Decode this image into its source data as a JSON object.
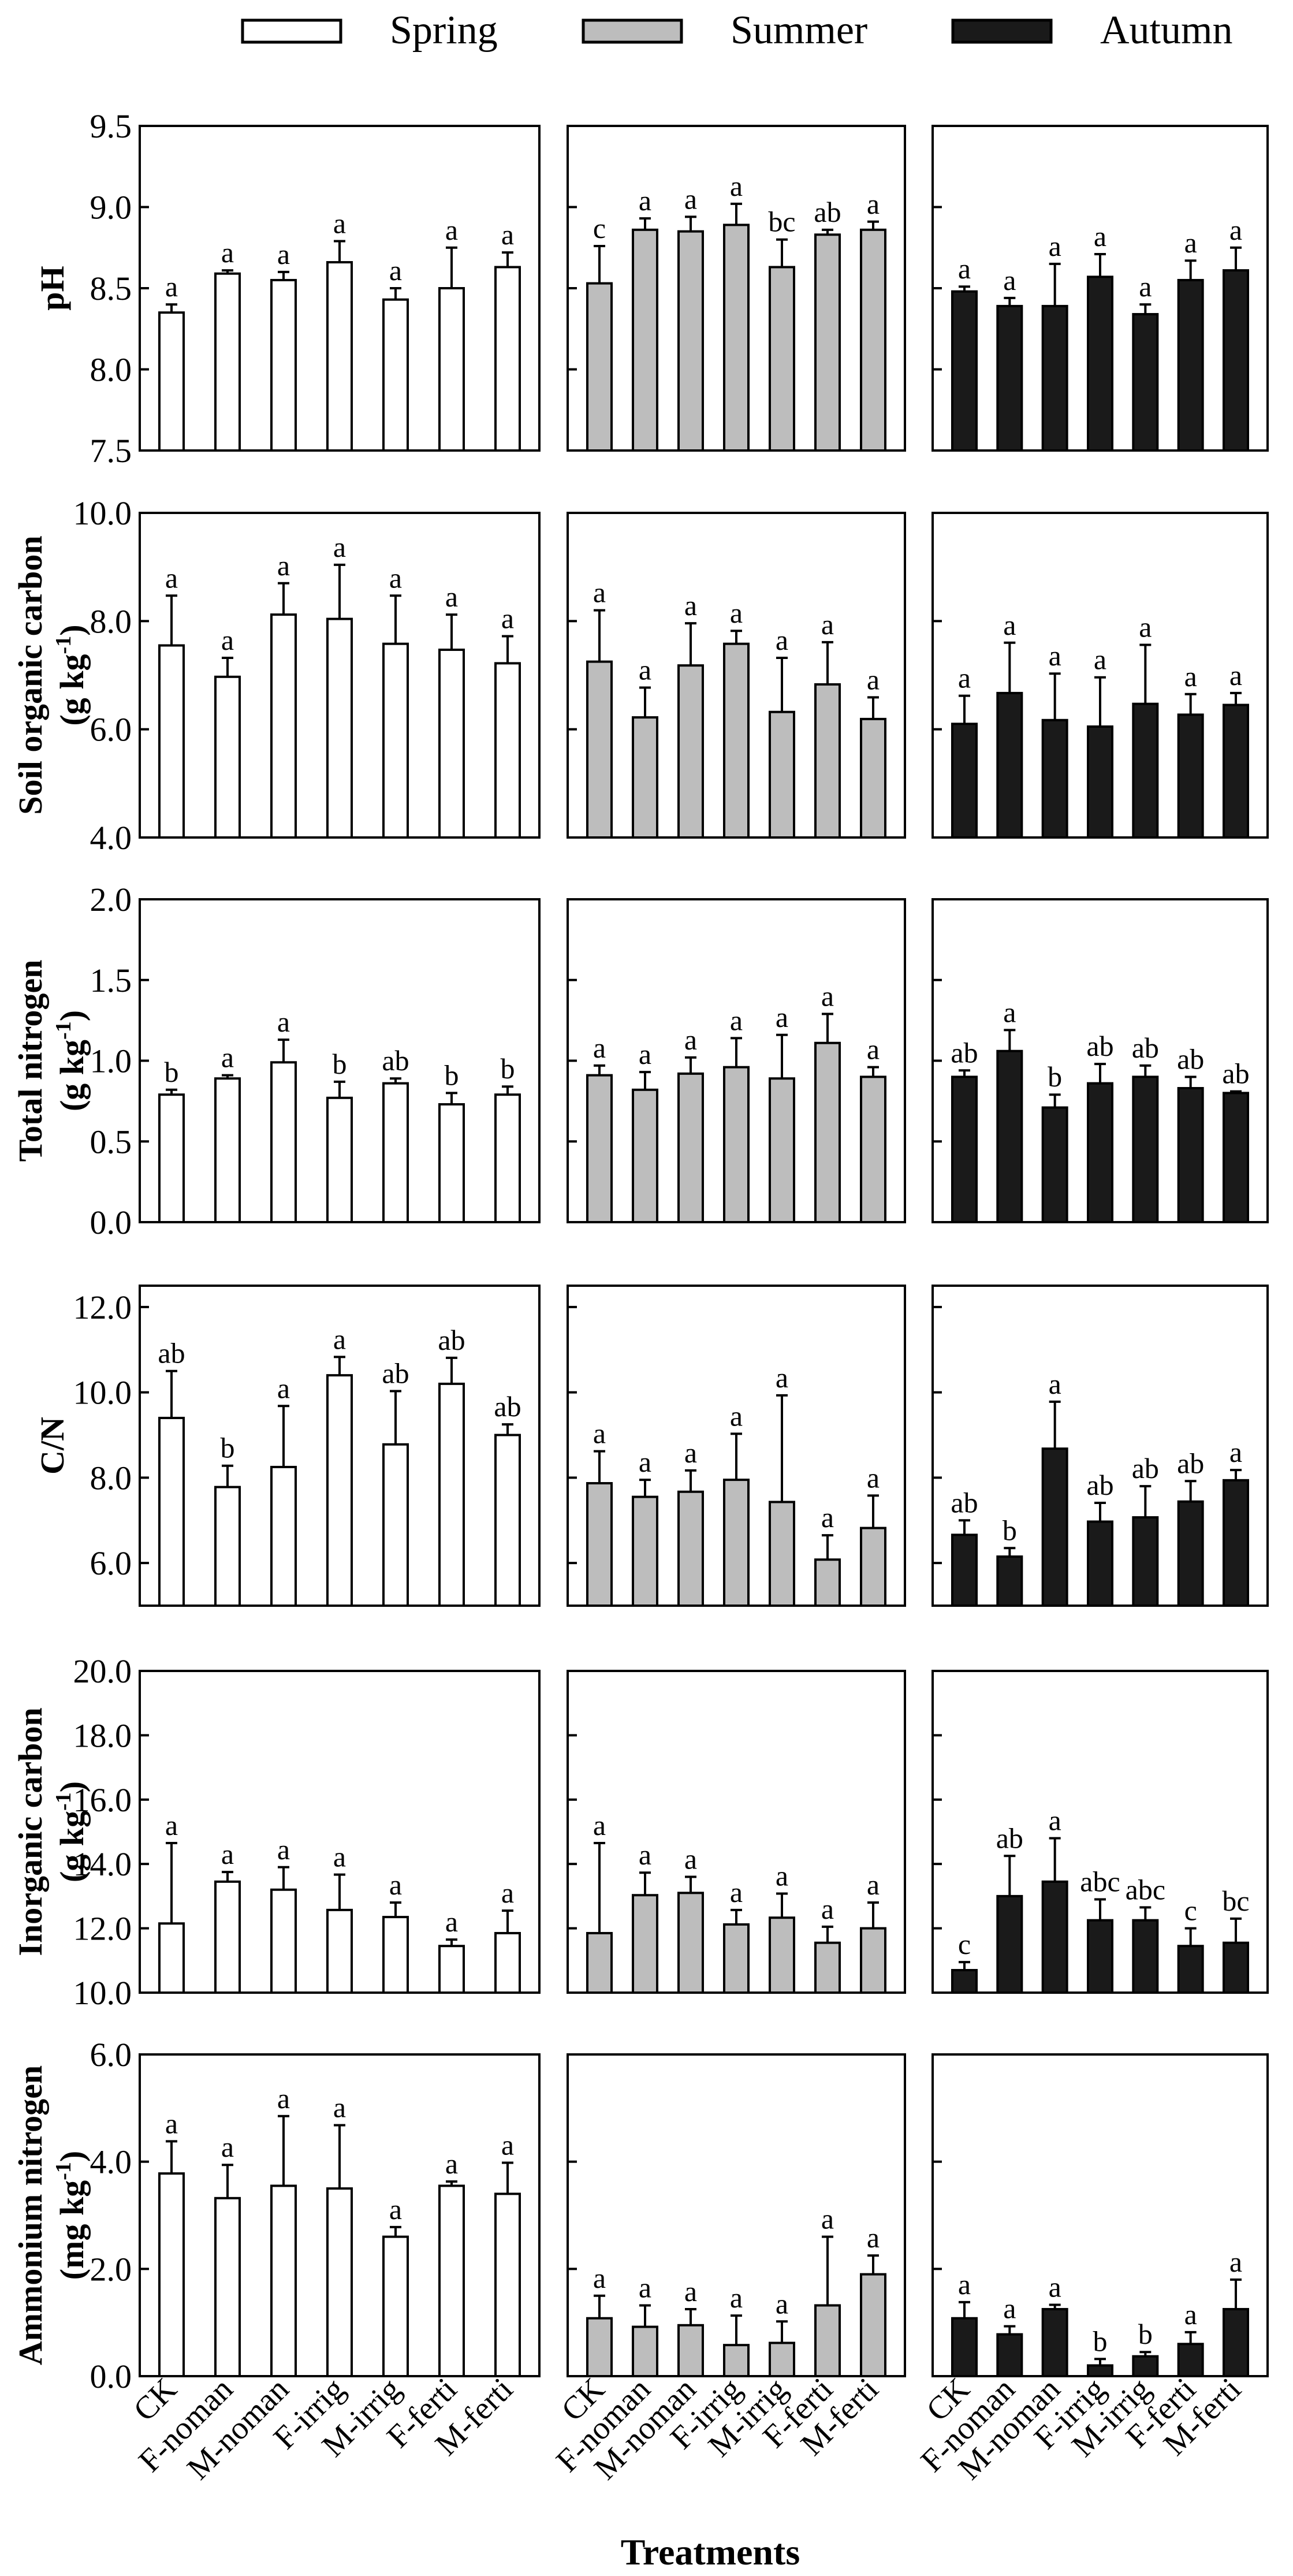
{
  "figure": {
    "xlabel": "Treatments"
  },
  "legend": [
    {
      "name": "Spring",
      "color": "#ffffff"
    },
    {
      "name": "Summer",
      "color": "#bdbdbd"
    },
    {
      "name": "Autumn",
      "color": "#1a1a1a"
    }
  ],
  "colors": {
    "spring": "#ffffff",
    "summer": "#bdbdbd",
    "autumn": "#1a1a1a",
    "axis": "#000000"
  },
  "chart_data": {
    "type": "bar",
    "categories": [
      "CK",
      "F-noman",
      "M-noman",
      "F-irrig",
      "M-irrig",
      "F-ferti",
      "M-ferti"
    ],
    "seasons": [
      "Spring",
      "Summer",
      "Autumn"
    ],
    "rows": [
      {
        "id": "ph",
        "ylabel_lines": [
          "pH"
        ],
        "ylim": [
          7.5,
          9.5
        ],
        "ticks": [
          "7.5",
          "8.0",
          "8.5",
          "9.0",
          "9.5"
        ],
        "series": [
          {
            "name": "Spring",
            "values": [
              8.35,
              8.59,
              8.55,
              8.66,
              8.43,
              8.5,
              8.63
            ],
            "errors": [
              0.05,
              0.02,
              0.05,
              0.13,
              0.07,
              0.25,
              0.09
            ],
            "letters": [
              "a",
              "a",
              "a",
              "a",
              "a",
              "a",
              "a"
            ]
          },
          {
            "name": "Summer",
            "values": [
              8.53,
              8.86,
              8.85,
              8.89,
              8.63,
              8.83,
              8.86
            ],
            "errors": [
              0.23,
              0.07,
              0.09,
              0.13,
              0.17,
              0.03,
              0.05
            ],
            "letters": [
              "c",
              "a",
              "a",
              "a",
              "bc",
              "ab",
              "a"
            ]
          },
          {
            "name": "Autumn",
            "values": [
              8.48,
              8.39,
              8.39,
              8.57,
              8.34,
              8.55,
              8.61
            ],
            "errors": [
              0.03,
              0.05,
              0.26,
              0.14,
              0.06,
              0.12,
              0.14
            ],
            "letters": [
              "a",
              "a",
              "a",
              "a",
              "a",
              "a",
              "a"
            ]
          }
        ]
      },
      {
        "id": "soc",
        "ylabel_lines": [
          "Soil organic carbon",
          "(g kg",
          "-1",
          ")"
        ],
        "ylim": [
          4.0,
          10.0
        ],
        "ticks": [
          "4.0",
          "6.0",
          "8.0",
          "10.0"
        ],
        "series": [
          {
            "name": "Spring",
            "values": [
              7.55,
              6.97,
              8.12,
              8.04,
              7.58,
              7.47,
              7.22
            ],
            "errors": [
              0.92,
              0.35,
              0.58,
              1.0,
              0.89,
              0.65,
              0.5
            ],
            "letters": [
              "a",
              "a",
              "a",
              "a",
              "a",
              "a",
              "a"
            ]
          },
          {
            "name": "Summer",
            "values": [
              7.25,
              6.22,
              7.18,
              7.58,
              6.32,
              6.83,
              6.19
            ],
            "errors": [
              0.95,
              0.55,
              0.78,
              0.24,
              1.0,
              0.78,
              0.4
            ],
            "letters": [
              "a",
              "a",
              "a",
              "a",
              "a",
              "a",
              "a"
            ]
          },
          {
            "name": "Autumn",
            "values": [
              6.1,
              6.67,
              6.17,
              6.05,
              6.47,
              6.27,
              6.45
            ],
            "errors": [
              0.52,
              0.93,
              0.86,
              0.91,
              1.09,
              0.38,
              0.22
            ],
            "letters": [
              "a",
              "a",
              "a",
              "a",
              "a",
              "a",
              "a"
            ]
          }
        ]
      },
      {
        "id": "tn",
        "ylabel_lines": [
          "Total nitrogen",
          "(g kg",
          "-1",
          ")"
        ],
        "ylim": [
          0.0,
          2.0
        ],
        "ticks": [
          "0.0",
          "0.5",
          "1.0",
          "1.5",
          "2.0"
        ],
        "series": [
          {
            "name": "Spring",
            "values": [
              0.79,
              0.89,
              0.99,
              0.77,
              0.86,
              0.73,
              0.79
            ],
            "errors": [
              0.03,
              0.02,
              0.14,
              0.1,
              0.03,
              0.07,
              0.05
            ],
            "letters": [
              "b",
              "a",
              "a",
              "b",
              "ab",
              "b",
              "b"
            ]
          },
          {
            "name": "Summer",
            "values": [
              0.91,
              0.82,
              0.92,
              0.96,
              0.89,
              1.11,
              0.9
            ],
            "errors": [
              0.06,
              0.11,
              0.1,
              0.18,
              0.27,
              0.18,
              0.06
            ],
            "letters": [
              "a",
              "a",
              "a",
              "a",
              "a",
              "a",
              "a"
            ]
          },
          {
            "name": "Autumn",
            "values": [
              0.9,
              1.06,
              0.71,
              0.86,
              0.9,
              0.83,
              0.8
            ],
            "errors": [
              0.04,
              0.13,
              0.08,
              0.12,
              0.07,
              0.07,
              0.01
            ],
            "letters": [
              "ab",
              "a",
              "b",
              "ab",
              "ab",
              "ab",
              "ab"
            ]
          }
        ]
      },
      {
        "id": "cn",
        "ylabel_lines": [
          "C/N"
        ],
        "ylim": [
          5.0,
          12.5
        ],
        "ticks": [
          "6.0",
          "8.0",
          "10.0",
          "12.0"
        ],
        "series": [
          {
            "name": "Spring",
            "values": [
              9.4,
              7.78,
              8.25,
              10.4,
              8.78,
              10.2,
              9.0
            ],
            "errors": [
              1.1,
              0.5,
              1.43,
              0.43,
              1.25,
              0.61,
              0.25
            ],
            "letters": [
              "ab",
              "b",
              "a",
              "a",
              "ab",
              "ab",
              "ab"
            ]
          },
          {
            "name": "Summer",
            "values": [
              7.87,
              7.55,
              7.67,
              7.95,
              7.43,
              6.08,
              6.82
            ],
            "errors": [
              0.75,
              0.4,
              0.5,
              1.08,
              2.5,
              0.57,
              0.76
            ],
            "letters": [
              "a",
              "a",
              "a",
              "a",
              "a",
              "a",
              "a"
            ]
          },
          {
            "name": "Autumn",
            "values": [
              6.66,
              6.15,
              8.68,
              6.97,
              7.07,
              7.44,
              7.94
            ],
            "errors": [
              0.34,
              0.2,
              1.1,
              0.44,
              0.73,
              0.48,
              0.24
            ],
            "letters": [
              "ab",
              "b",
              "a",
              "ab",
              "ab",
              "ab",
              "a"
            ]
          }
        ]
      },
      {
        "id": "ic",
        "ylabel_lines": [
          "Inorganic carbon",
          "(g kg",
          "-1",
          ")"
        ],
        "ylim": [
          10.0,
          20.0
        ],
        "ticks": [
          "10.0",
          "12.0",
          "14.0",
          "16.0",
          "18.0",
          "20.0"
        ],
        "series": [
          {
            "name": "Spring",
            "values": [
              12.15,
              13.45,
              13.2,
              12.57,
              12.35,
              11.45,
              11.85
            ],
            "errors": [
              2.5,
              0.3,
              0.7,
              1.1,
              0.45,
              0.2,
              0.7
            ],
            "letters": [
              "a",
              "a",
              "a",
              "a",
              "a",
              "a",
              "a"
            ]
          },
          {
            "name": "Summer",
            "values": [
              11.85,
              13.03,
              13.1,
              12.12,
              12.33,
              11.55,
              12.0
            ],
            "errors": [
              2.8,
              0.7,
              0.5,
              0.45,
              0.75,
              0.5,
              0.8
            ],
            "letters": [
              "a",
              "a",
              "a",
              "a",
              "a",
              "a",
              "a"
            ]
          },
          {
            "name": "Autumn",
            "values": [
              10.7,
              13.0,
              13.45,
              12.25,
              12.25,
              11.45,
              11.55
            ],
            "errors": [
              0.25,
              1.25,
              1.35,
              0.65,
              0.4,
              0.55,
              0.75
            ],
            "letters": [
              "c",
              "ab",
              "a",
              "abc",
              "abc",
              "c",
              "bc"
            ]
          }
        ]
      },
      {
        "id": "nh4",
        "ylabel_lines": [
          "Ammonium nitrogen",
          "(mg kg",
          "-1",
          ")"
        ],
        "ylim": [
          0.0,
          6.0
        ],
        "ticks": [
          "0.0",
          "2.0",
          "4.0",
          "6.0"
        ],
        "series": [
          {
            "name": "Spring",
            "values": [
              3.78,
              3.32,
              3.55,
              3.5,
              2.6,
              3.55,
              3.4
            ],
            "errors": [
              0.6,
              0.62,
              1.3,
              1.18,
              0.18,
              0.08,
              0.58
            ],
            "letters": [
              "a",
              "a",
              "a",
              "a",
              "a",
              "a",
              "a"
            ]
          },
          {
            "name": "Summer",
            "values": [
              1.08,
              0.92,
              0.95,
              0.58,
              0.62,
              1.32,
              1.9
            ],
            "errors": [
              0.42,
              0.4,
              0.3,
              0.55,
              0.4,
              1.28,
              0.35
            ],
            "letters": [
              "a",
              "a",
              "a",
              "a",
              "a",
              "a",
              "a"
            ]
          },
          {
            "name": "Autumn",
            "values": [
              1.08,
              0.78,
              1.25,
              0.2,
              0.37,
              0.6,
              1.25
            ],
            "errors": [
              0.3,
              0.15,
              0.08,
              0.12,
              0.08,
              0.22,
              0.55
            ],
            "letters": [
              "a",
              "a",
              "a",
              "b",
              "b",
              "a",
              "a"
            ]
          }
        ]
      }
    ]
  }
}
